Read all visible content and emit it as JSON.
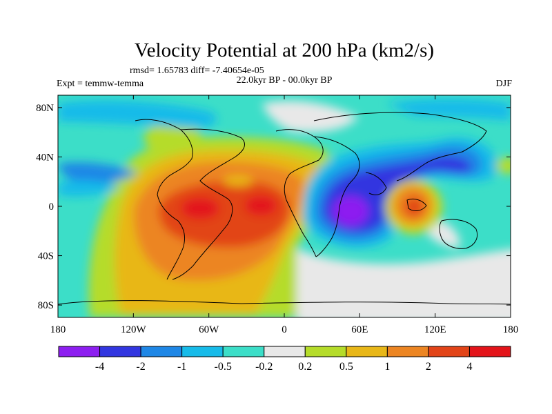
{
  "chart_data": {
    "type": "heatmap",
    "title": "Velocity Potential at 200 hPa (km2/s)",
    "stats_text": "rmsd= 1.65783 diff= -7.40654e-05",
    "left_label": "Expt = temmw-temma",
    "center_label": "22.0kyr BP - 00.0kyr BP",
    "season": "DJF",
    "x_ticks": [
      {
        "value": -180,
        "label": "180"
      },
      {
        "value": -120,
        "label": "120W"
      },
      {
        "value": -60,
        "label": "60W"
      },
      {
        "value": 0,
        "label": "0"
      },
      {
        "value": 60,
        "label": "60E"
      },
      {
        "value": 120,
        "label": "120E"
      },
      {
        "value": 180,
        "label": "180"
      }
    ],
    "y_ticks": [
      {
        "value": 80,
        "label": "80N"
      },
      {
        "value": 40,
        "label": "40N"
      },
      {
        "value": 0,
        "label": "0"
      },
      {
        "value": -40,
        "label": "40S"
      },
      {
        "value": -80,
        "label": "80S"
      }
    ],
    "xlim": [
      -180,
      180
    ],
    "ylim": [
      -90,
      90
    ],
    "colorbar": {
      "colors": [
        "#8d1ff0",
        "#3236e0",
        "#1f87e6",
        "#17bbe9",
        "#3cdec8",
        "#e8e8e8",
        "#b5dc2a",
        "#e8b718",
        "#ec8522",
        "#e24418",
        "#e3141a"
      ],
      "labels": [
        "-4",
        "-2",
        "-1",
        "-0.5",
        "-0.2",
        "0.2",
        "0.5",
        "1",
        "2",
        "4"
      ]
    },
    "field_features": [
      {
        "lon": -60,
        "lat": 0,
        "value": 4.5
      },
      {
        "lon": -15,
        "lat": -2,
        "value": 4.3
      },
      {
        "lon": 50,
        "lat": -3,
        "value": -4.5
      },
      {
        "lon": 98,
        "lat": -5,
        "value": 3.2
      },
      {
        "lon": 120,
        "lat": 40,
        "value": -2.5
      },
      {
        "lon": -155,
        "lat": 28,
        "value": -1.2
      }
    ]
  }
}
